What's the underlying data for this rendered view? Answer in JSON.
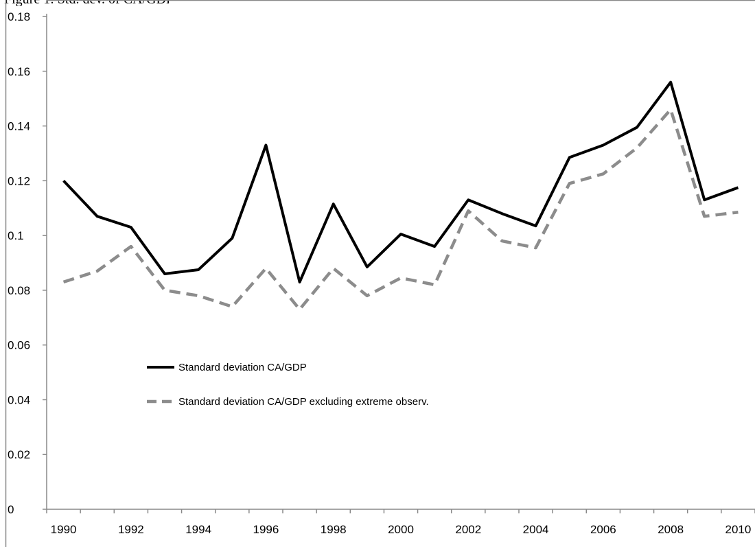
{
  "figure": {
    "caption_fragment": "Figure 1: Std. dev. of CA/GDP"
  },
  "chart_data": {
    "type": "line",
    "title": "",
    "xlabel": "",
    "ylabel": "",
    "x": [
      1990,
      1991,
      1992,
      1993,
      1994,
      1995,
      1996,
      1997,
      1998,
      1999,
      2000,
      2001,
      2002,
      2003,
      2004,
      2005,
      2006,
      2007,
      2008,
      2009,
      2010
    ],
    "x_tick_labels": [
      "1990",
      "1992",
      "1994",
      "1996",
      "1998",
      "2000",
      "2002",
      "2004",
      "2006",
      "2008",
      "2010"
    ],
    "y_tick_labels": [
      "0",
      "0.02",
      "0.04",
      "0.06",
      "0.08",
      "0.1",
      "0.12",
      "0.14",
      "0.16",
      "0.18"
    ],
    "ylim": [
      0,
      0.18
    ],
    "grid": false,
    "legend_position": "center-left",
    "series": [
      {
        "name": "Standard deviation CA/GDP",
        "color": "#000000",
        "style": "solid",
        "values": [
          0.12,
          0.107,
          0.103,
          0.086,
          0.0875,
          0.099,
          0.133,
          0.083,
          0.1115,
          0.0885,
          0.1005,
          0.096,
          0.113,
          0.108,
          0.1035,
          0.1285,
          0.133,
          0.1395,
          0.156,
          0.113,
          0.1175
        ]
      },
      {
        "name": "Standard deviation CA/GDP excluding extreme observ.",
        "color": "#8c8c8c",
        "style": "dashed",
        "values": [
          0.083,
          0.087,
          0.096,
          0.08,
          0.078,
          0.074,
          0.088,
          0.073,
          0.088,
          0.078,
          0.0845,
          0.082,
          0.109,
          0.098,
          0.0955,
          0.119,
          0.1225,
          0.132,
          0.146,
          0.107,
          0.1085
        ]
      }
    ]
  }
}
